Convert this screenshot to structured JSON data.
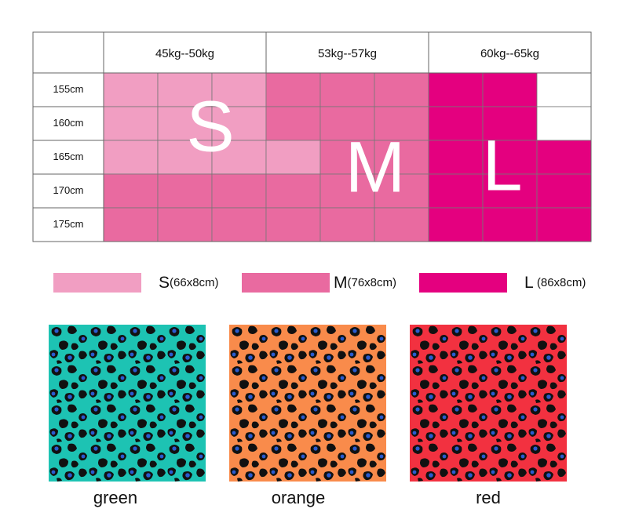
{
  "size_table": {
    "weights": [
      "45kg--50kg",
      "53kg--57kg",
      "60kg--65kg"
    ],
    "heights": [
      "155cm",
      "160cm",
      "165cm",
      "170cm",
      "175cm"
    ],
    "size_letters": [
      "S",
      "M",
      "L"
    ]
  },
  "legend": [
    {
      "letter": "S",
      "size": "(66x8cm)",
      "color": "#f19ec2"
    },
    {
      "letter": "M",
      "size": "(76x8cm)",
      "color": "#e96aa0"
    },
    {
      "letter": "L",
      "size": " (86x8cm)",
      "color": "#e4007f"
    }
  ],
  "patterns": [
    "green",
    "orange",
    "red"
  ]
}
